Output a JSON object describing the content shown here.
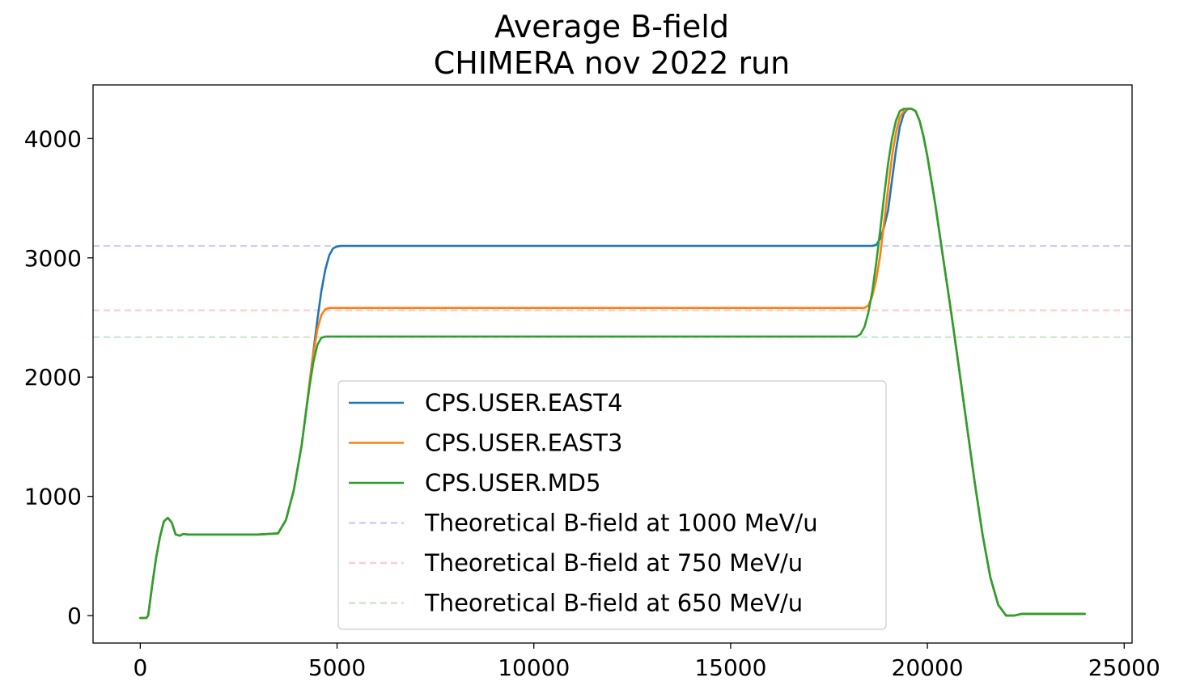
{
  "chart_data": {
    "type": "line",
    "title": [
      "Average B-field",
      "CHIMERA nov 2022 run"
    ],
    "xlabel": "",
    "ylabel": "",
    "xlim": [
      -1200,
      25200
    ],
    "ylim": [
      -230,
      4450
    ],
    "xticks": [
      0,
      5000,
      10000,
      15000,
      20000,
      25000
    ],
    "yticks": [
      0,
      1000,
      2000,
      3000,
      4000
    ],
    "grid": false,
    "legend_position": "lower-center",
    "series": [
      {
        "name": "CPS.USER.EAST4",
        "color": "#1f77b4",
        "style": "solid",
        "x": [
          0,
          150,
          200,
          300,
          400,
          500,
          600,
          700,
          800,
          900,
          1000,
          1100,
          1200,
          2000,
          3000,
          3500,
          3700,
          3900,
          4100,
          4200,
          4300,
          4400,
          4500,
          4600,
          4700,
          4800,
          4900,
          5000,
          5100,
          5200,
          6000,
          10000,
          15000,
          18000,
          18400,
          18600,
          18700,
          18800,
          18900,
          19000,
          19100,
          19200,
          19300,
          19400,
          19500,
          19600,
          19700,
          19800,
          19900,
          20000,
          20200,
          20400,
          20600,
          20800,
          21000,
          21200,
          21400,
          21600,
          21800,
          22000,
          22200,
          22400,
          22600,
          22800,
          23000,
          24000
        ],
        "y": [
          -20,
          -20,
          0,
          250,
          480,
          660,
          790,
          820,
          780,
          680,
          670,
          685,
          680,
          680,
          680,
          690,
          800,
          1050,
          1430,
          1680,
          1950,
          2220,
          2480,
          2720,
          2900,
          3020,
          3080,
          3095,
          3100,
          3100,
          3100,
          3100,
          3100,
          3100,
          3100,
          3100,
          3110,
          3160,
          3260,
          3400,
          3650,
          3900,
          4100,
          4210,
          4250,
          4250,
          4230,
          4150,
          4020,
          3850,
          3450,
          3000,
          2550,
          2080,
          1600,
          1120,
          680,
          320,
          90,
          0,
          0,
          15,
          15,
          15,
          15,
          15
        ]
      },
      {
        "name": "CPS.USER.EAST3",
        "color": "#ff7f0e",
        "style": "solid",
        "x": [
          0,
          150,
          200,
          300,
          400,
          500,
          600,
          700,
          800,
          900,
          1000,
          1100,
          1200,
          2000,
          3000,
          3500,
          3700,
          3900,
          4100,
          4200,
          4300,
          4400,
          4500,
          4600,
          4700,
          4800,
          4900,
          5000,
          6000,
          10000,
          15000,
          18000,
          18200,
          18400,
          18500,
          18600,
          18700,
          18800,
          18900,
          19000,
          19100,
          19200,
          19300,
          19400,
          19500,
          19600,
          19700,
          19800,
          19900,
          20000,
          20200,
          20400,
          20600,
          20800,
          21000,
          21200,
          21400,
          21600,
          21800,
          22000,
          22200,
          22400,
          22600,
          22800,
          23000,
          24000
        ],
        "y": [
          -20,
          -20,
          0,
          250,
          480,
          660,
          790,
          820,
          780,
          680,
          670,
          685,
          680,
          680,
          680,
          690,
          800,
          1050,
          1430,
          1680,
          1950,
          2200,
          2400,
          2520,
          2570,
          2580,
          2580,
          2580,
          2580,
          2580,
          2580,
          2580,
          2580,
          2580,
          2600,
          2680,
          2820,
          3020,
          3300,
          3580,
          3850,
          4050,
          4180,
          4230,
          4250,
          4250,
          4230,
          4150,
          4020,
          3850,
          3450,
          3000,
          2550,
          2080,
          1600,
          1120,
          680,
          320,
          90,
          0,
          0,
          15,
          15,
          15,
          15,
          15
        ]
      },
      {
        "name": "CPS.USER.MD5",
        "color": "#2ca02c",
        "style": "solid",
        "x": [
          0,
          150,
          200,
          300,
          400,
          500,
          600,
          700,
          800,
          900,
          1000,
          1100,
          1200,
          2000,
          3000,
          3500,
          3700,
          3900,
          4100,
          4200,
          4300,
          4400,
          4500,
          4600,
          4700,
          4800,
          5000,
          6000,
          10000,
          15000,
          18000,
          18200,
          18300,
          18400,
          18500,
          18600,
          18700,
          18800,
          18900,
          19000,
          19100,
          19200,
          19300,
          19400,
          19500,
          19600,
          19700,
          19800,
          19900,
          20000,
          20200,
          20400,
          20600,
          20800,
          21000,
          21200,
          21400,
          21600,
          21800,
          22000,
          22200,
          22400,
          22600,
          22800,
          23000,
          24000
        ],
        "y": [
          -20,
          -20,
          0,
          250,
          480,
          660,
          790,
          820,
          780,
          680,
          670,
          685,
          680,
          680,
          680,
          690,
          800,
          1050,
          1430,
          1680,
          1920,
          2130,
          2270,
          2330,
          2340,
          2340,
          2340,
          2340,
          2340,
          2340,
          2340,
          2340,
          2360,
          2420,
          2540,
          2720,
          2960,
          3230,
          3520,
          3790,
          4000,
          4150,
          4230,
          4250,
          4250,
          4250,
          4230,
          4150,
          4020,
          3850,
          3450,
          3000,
          2550,
          2080,
          1600,
          1120,
          680,
          320,
          90,
          0,
          0,
          15,
          15,
          15,
          15,
          15
        ]
      }
    ],
    "hlines": [
      {
        "name": "Theoretical B-field at 1000 MeV/u",
        "y": 3100,
        "color": "#0000ff",
        "opacity": 0.2,
        "style": "dashed"
      },
      {
        "name": "Theoretical B-field at 750 MeV/u",
        "y": 2560,
        "color": "#ff0000",
        "opacity": 0.2,
        "style": "dashed"
      },
      {
        "name": "Theoretical B-field at 650 MeV/u",
        "y": 2335,
        "color": "#008000",
        "opacity": 0.2,
        "style": "dashed"
      }
    ]
  }
}
